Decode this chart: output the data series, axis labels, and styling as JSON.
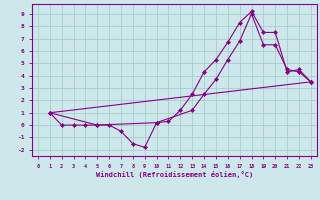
{
  "xlabel": "Windchill (Refroidissement éolien,°C)",
  "bg_color": "#cce8ea",
  "line_color": "#880088",
  "grid_color": "#aacccc",
  "xlim": [
    -0.5,
    23.5
  ],
  "ylim": [
    -2.5,
    9.8
  ],
  "xticks": [
    0,
    1,
    2,
    3,
    4,
    5,
    6,
    7,
    8,
    9,
    10,
    11,
    12,
    13,
    14,
    15,
    16,
    17,
    18,
    19,
    20,
    21,
    22,
    23
  ],
  "yticks": [
    -2,
    -1,
    0,
    1,
    2,
    3,
    4,
    5,
    6,
    7,
    8,
    9
  ],
  "line1_x": [
    1,
    2,
    3,
    4,
    5,
    6,
    7,
    8,
    9,
    10,
    11,
    12,
    13,
    14,
    15,
    16,
    17,
    18,
    19,
    20,
    21,
    22,
    23
  ],
  "line1_y": [
    1,
    0,
    0,
    0,
    0,
    0,
    -0.5,
    -1.5,
    -1.8,
    0.2,
    0.3,
    1.2,
    2.5,
    4.3,
    5.3,
    6.7,
    8.3,
    9.2,
    7.5,
    7.5,
    4.3,
    4.5,
    3.5
  ],
  "line2_x": [
    1,
    5,
    10,
    13,
    14,
    15,
    16,
    17,
    18,
    19,
    20,
    21,
    22,
    23
  ],
  "line2_y": [
    1,
    0,
    0.2,
    1.2,
    2.5,
    3.7,
    5.3,
    6.8,
    9.0,
    6.5,
    6.5,
    4.5,
    4.3,
    3.5
  ],
  "line3_x": [
    1,
    23
  ],
  "line3_y": [
    1,
    3.5
  ]
}
